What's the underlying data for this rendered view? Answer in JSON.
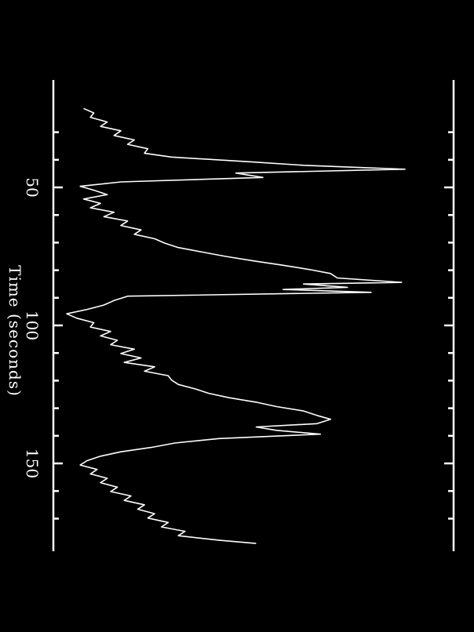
{
  "chart_data": {
    "type": "line",
    "orientation": "rotated-90-clockwise",
    "xlabel": "Time (seconds)",
    "ylabel": "",
    "xlim": [
      20,
      180
    ],
    "x_ticks_major": [
      50,
      100,
      150
    ],
    "x_ticks_minor": [
      30,
      40,
      60,
      70,
      80,
      90,
      110,
      120,
      130,
      140,
      160,
      170
    ],
    "grid": false,
    "colors": {
      "background": "#000000",
      "foreground": "#ffffff"
    },
    "series": [
      {
        "x": [
          21.4,
          23.0,
          24.6,
          26.3,
          27.9,
          29.5,
          31.2,
          32.8,
          34.4,
          36.0,
          37.6,
          39.0,
          40.8,
          42.0,
          43.4,
          44.8,
          46.4,
          48.0,
          49.6,
          51.0,
          52.6,
          54.2,
          55.8,
          57.4,
          59.0,
          60.6,
          62.2,
          63.8,
          65.4,
          67.0,
          68.6,
          70.2,
          71.8,
          73.4,
          75.0,
          76.6,
          78.2,
          79.8,
          81.2,
          82.8,
          84.4,
          85.0,
          86.2,
          87.0,
          88.0,
          89.4,
          91.0,
          92.6,
          94.2,
          95.8,
          97.4,
          99.0,
          100.6,
          102.2,
          103.8,
          105.4,
          107.0,
          108.6,
          110.2,
          111.8,
          113.4,
          115.0,
          116.6,
          118.2,
          119.8,
          121.4,
          123.0,
          124.6,
          126.2,
          127.8,
          129.4,
          131.0,
          132.6,
          134.0,
          135.6,
          136.8,
          138.0,
          139.4,
          141.0,
          142.6,
          144.2,
          145.8,
          147.4,
          149.0,
          150.6,
          152.2,
          153.8,
          155.4,
          157.0,
          158.6,
          160.2,
          161.8,
          163.4,
          165.0,
          166.6,
          168.2,
          169.8,
          171.4,
          173.0,
          174.6,
          176.2,
          177.8,
          179.0
        ],
        "y": [
          0.05,
          0.08,
          0.07,
          0.12,
          0.1,
          0.16,
          0.14,
          0.2,
          0.18,
          0.24,
          0.23,
          0.31,
          0.55,
          0.7,
          1.0,
          0.5,
          0.58,
          0.16,
          0.04,
          0.08,
          0.12,
          0.05,
          0.1,
          0.07,
          0.14,
          0.11,
          0.18,
          0.16,
          0.22,
          0.2,
          0.26,
          0.29,
          0.33,
          0.4,
          0.47,
          0.55,
          0.64,
          0.72,
          0.78,
          0.8,
          0.99,
          0.7,
          0.83,
          0.64,
          0.9,
          0.18,
          0.14,
          0.11,
          0.06,
          0.0,
          0.03,
          0.08,
          0.07,
          0.13,
          0.1,
          0.15,
          0.13,
          0.2,
          0.16,
          0.22,
          0.17,
          0.26,
          0.23,
          0.3,
          0.31,
          0.33,
          0.38,
          0.42,
          0.48,
          0.56,
          0.62,
          0.7,
          0.74,
          0.78,
          0.74,
          0.56,
          0.62,
          0.75,
          0.45,
          0.32,
          0.25,
          0.16,
          0.1,
          0.06,
          0.04,
          0.09,
          0.07,
          0.12,
          0.1,
          0.15,
          0.13,
          0.19,
          0.17,
          0.23,
          0.21,
          0.26,
          0.24,
          0.3,
          0.28,
          0.35,
          0.33,
          0.45,
          0.56
        ]
      }
    ]
  }
}
